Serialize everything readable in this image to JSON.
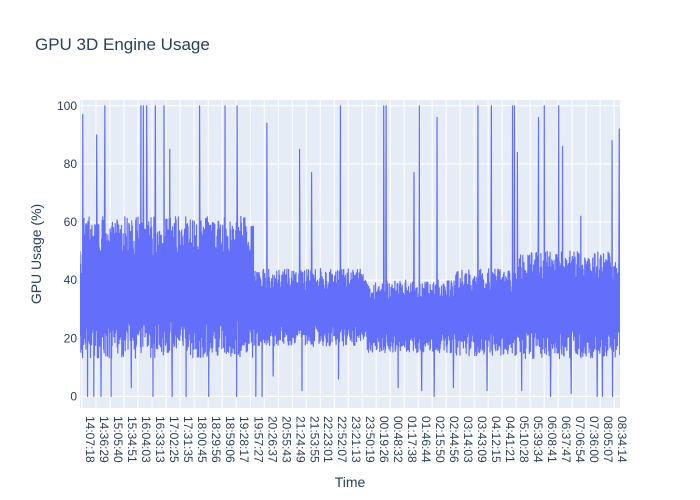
{
  "chart_data": {
    "type": "line",
    "title": "GPU 3D Engine Usage",
    "xlabel": "Time",
    "ylabel": "GPU Usage (%)",
    "ylim": [
      -4,
      102
    ],
    "yticks": [
      0,
      20,
      40,
      60,
      80,
      100
    ],
    "grid": true,
    "legend": "none",
    "x_ticks": [
      "14:07:18",
      "14:36:29",
      "15:05:40",
      "15:34:51",
      "16:04:03",
      "16:33:13",
      "17:02:25",
      "17:31:35",
      "18:00:45",
      "18:29:56",
      "18:59:06",
      "19:28:17",
      "19:57:27",
      "20:26:37",
      "20:55:43",
      "21:24:49",
      "21:53:55",
      "22:23:01",
      "22:52:07",
      "23:21:13",
      "23:50:19",
      "00:19:26",
      "00:48:32",
      "01:17:38",
      "01:46:44",
      "02:15:50",
      "02:44:56",
      "03:14:03",
      "03:43:09",
      "04:12:15",
      "04:41:21",
      "05:10:28",
      "05:39:34",
      "06:08:41",
      "06:37:47",
      "07:06:54",
      "07:36:00",
      "08:05:07",
      "08:34:14"
    ],
    "series": [
      {
        "color": "#636efa",
        "segments": [
          {
            "from": "14:07:18",
            "to": "20:05:00",
            "baseline_low": 13,
            "baseline_high": 62,
            "max_spike": 100
          },
          {
            "from": "20:05:00",
            "to": "00:00:00",
            "baseline_low": 17,
            "baseline_high": 44,
            "max_spike": 100
          },
          {
            "from": "00:00:00",
            "to": "03:00:00",
            "baseline_low": 15,
            "baseline_high": 40,
            "max_spike": 100
          },
          {
            "from": "03:00:00",
            "to": "05:15:00",
            "baseline_low": 14,
            "baseline_high": 44,
            "max_spike": 100
          },
          {
            "from": "05:15:00",
            "to": "08:45:00",
            "baseline_low": 13,
            "baseline_high": 50,
            "max_spike": 100
          }
        ],
        "peaks": [
          {
            "x": "14:09:00",
            "y": 97
          },
          {
            "x": "14:38:00",
            "y": 90
          },
          {
            "x": "14:55:00",
            "y": 100
          },
          {
            "x": "15:50:00",
            "y": 100
          },
          {
            "x": "16:10:00",
            "y": 100
          },
          {
            "x": "16:15:00",
            "y": 100
          },
          {
            "x": "16:22:00",
            "y": 100
          },
          {
            "x": "16:40:00",
            "y": 100
          },
          {
            "x": "16:58:00",
            "y": 100
          },
          {
            "x": "17:10:00",
            "y": 85
          },
          {
            "x": "18:12:00",
            "y": 100
          },
          {
            "x": "19:05:00",
            "y": 100
          },
          {
            "x": "19:30:00",
            "y": 100
          },
          {
            "x": "20:32:00",
            "y": 94
          },
          {
            "x": "21:40:00",
            "y": 85
          },
          {
            "x": "22:05:00",
            "y": 77
          },
          {
            "x": "23:05:00",
            "y": 100
          },
          {
            "x": "00:35:00",
            "y": 100
          },
          {
            "x": "00:40:00",
            "y": 100
          },
          {
            "x": "01:38:00",
            "y": 77
          },
          {
            "x": "01:49:00",
            "y": 100
          },
          {
            "x": "02:26:00",
            "y": 96
          },
          {
            "x": "03:00:00",
            "y": 72
          },
          {
            "x": "03:51:00",
            "y": 100
          },
          {
            "x": "04:19:00",
            "y": 100
          },
          {
            "x": "05:03:00",
            "y": 100
          },
          {
            "x": "05:07:00",
            "y": 100
          },
          {
            "x": "05:13:00",
            "y": 84
          },
          {
            "x": "05:57:00",
            "y": 96
          },
          {
            "x": "06:09:00",
            "y": 100
          },
          {
            "x": "06:39:00",
            "y": 100
          },
          {
            "x": "06:47:00",
            "y": 86
          },
          {
            "x": "07:25:00",
            "y": 62
          },
          {
            "x": "08:30:00",
            "y": 88
          },
          {
            "x": "08:45:00",
            "y": 92
          }
        ],
        "dips": [
          {
            "x": "14:19:00",
            "y": 0
          },
          {
            "x": "14:32:00",
            "y": 0
          },
          {
            "x": "14:47:00",
            "y": 0
          },
          {
            "x": "15:08:00",
            "y": 0
          },
          {
            "x": "15:50:00",
            "y": 3
          },
          {
            "x": "16:35:00",
            "y": 0
          },
          {
            "x": "17:15:00",
            "y": 0
          },
          {
            "x": "17:44:00",
            "y": 0
          },
          {
            "x": "18:31:00",
            "y": 0
          },
          {
            "x": "19:29:00",
            "y": 0
          },
          {
            "x": "20:09:00",
            "y": 0
          },
          {
            "x": "20:22:00",
            "y": 0
          },
          {
            "x": "20:45:00",
            "y": 7
          },
          {
            "x": "21:45:00",
            "y": 2
          },
          {
            "x": "23:01:00",
            "y": 6
          },
          {
            "x": "01:05:00",
            "y": 3
          },
          {
            "x": "01:54:00",
            "y": 2
          },
          {
            "x": "02:20:00",
            "y": 0
          },
          {
            "x": "03:00:00",
            "y": 3
          },
          {
            "x": "04:10:00",
            "y": 2
          },
          {
            "x": "05:22:00",
            "y": 2
          },
          {
            "x": "06:22:00",
            "y": 0
          },
          {
            "x": "07:05:00",
            "y": 1
          },
          {
            "x": "07:59:00",
            "y": 0
          },
          {
            "x": "08:10:00",
            "y": 0
          },
          {
            "x": "08:31:00",
            "y": 0
          }
        ]
      }
    ]
  }
}
